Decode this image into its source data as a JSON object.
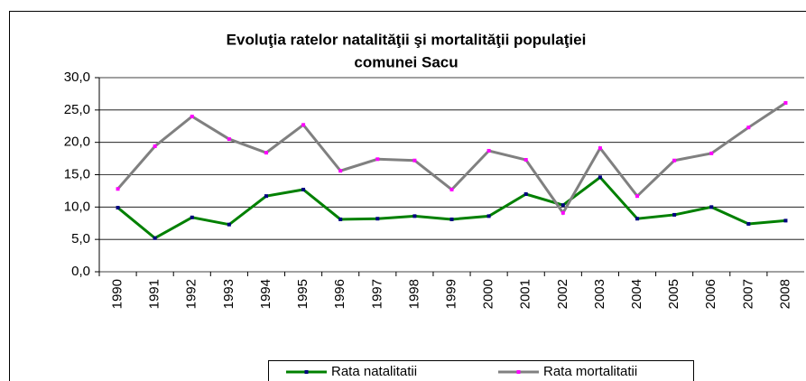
{
  "chart_data": {
    "type": "line",
    "title": [
      "Evoluţia ratelor natalităţii şi mortalităţii populaţiei",
      "comunei Sacu"
    ],
    "categories": [
      "1990",
      "1991",
      "1992",
      "1993",
      "1994",
      "1995",
      "1996",
      "1997",
      "1998",
      "1999",
      "2000",
      "2001",
      "2002",
      "2003",
      "2004",
      "2005",
      "2006",
      "2007",
      "2008"
    ],
    "series": [
      {
        "name": "Rata natalitatii",
        "color": "#008000",
        "marker_color": "#000080",
        "values": [
          9.9,
          5.2,
          8.4,
          7.3,
          11.7,
          12.7,
          8.1,
          8.2,
          8.6,
          8.1,
          8.6,
          12.0,
          10.3,
          14.6,
          8.2,
          8.8,
          10.0,
          7.4,
          7.9
        ]
      },
      {
        "name": "Rata mortalitatii",
        "color": "#808080",
        "marker_color": "#ff00ff",
        "values": [
          12.8,
          19.4,
          24.0,
          20.5,
          18.4,
          22.7,
          15.6,
          17.4,
          17.2,
          12.7,
          18.7,
          17.3,
          9.1,
          19.1,
          11.7,
          17.2,
          18.3,
          22.3,
          26.1
        ]
      }
    ],
    "ylim": [
      0,
      30
    ],
    "yticks": [
      {
        "value": 0,
        "label": "0,0"
      },
      {
        "value": 5,
        "label": "5,0"
      },
      {
        "value": 10,
        "label": "10,0"
      },
      {
        "value": 15,
        "label": "15,0"
      },
      {
        "value": 20,
        "label": "20,0"
      },
      {
        "value": 25,
        "label": "25,0"
      },
      {
        "value": 30,
        "label": "30,0"
      }
    ],
    "grid": true,
    "legend": "bottom"
  }
}
